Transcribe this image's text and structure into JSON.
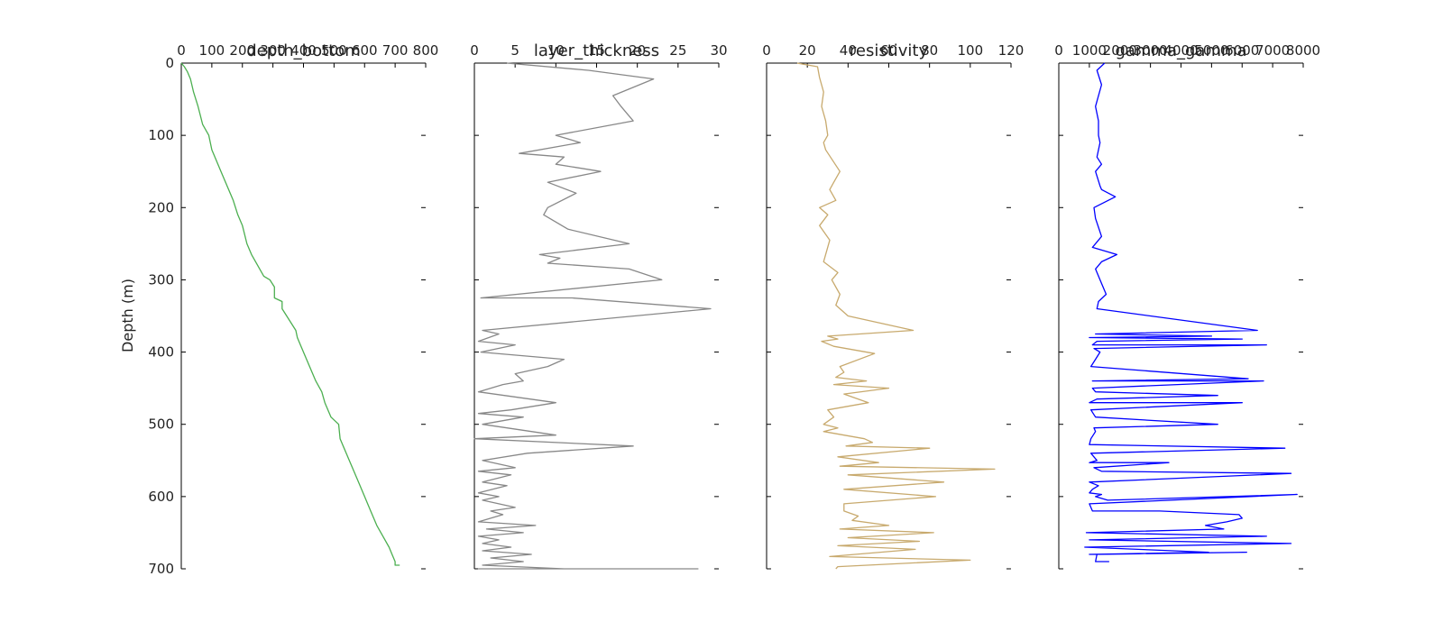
{
  "chart_data": [
    {
      "type": "line",
      "title": "depth_bottom",
      "xlim": [
        0,
        800
      ],
      "xticks": [
        "0",
        "100",
        "200",
        "300",
        "400",
        "500",
        "600",
        "700",
        "800"
      ],
      "ylim": [
        700,
        0
      ],
      "ylabel": "Depth (m)",
      "yticks": [
        "0",
        "100",
        "200",
        "300",
        "400",
        "500",
        "600",
        "700"
      ],
      "color": "#4caf50",
      "x": [
        0,
        10,
        20,
        30,
        40,
        55,
        70,
        90,
        100,
        110,
        130,
        150,
        170,
        185,
        200,
        215,
        230,
        250,
        270,
        290,
        305,
        305,
        330,
        330,
        375,
        380,
        390,
        410,
        430,
        440,
        460,
        470,
        480,
        490,
        515,
        520,
        540,
        560,
        580,
        600,
        620,
        640,
        660,
        680,
        690,
        700,
        700,
        715
      ],
      "y": [
        0,
        5,
        12,
        22,
        40,
        60,
        85,
        100,
        120,
        130,
        150,
        170,
        190,
        210,
        225,
        250,
        265,
        280,
        295,
        300,
        310,
        325,
        330,
        340,
        370,
        380,
        390,
        410,
        430,
        440,
        455,
        470,
        480,
        490,
        500,
        520,
        540,
        560,
        580,
        600,
        620,
        640,
        655,
        670,
        680,
        690,
        695,
        695
      ],
      "grid": false
    },
    {
      "type": "line",
      "title": "layer_thickness",
      "xlim": [
        0,
        30
      ],
      "xticks": [
        "0",
        "5",
        "10",
        "15",
        "20",
        "25",
        "30"
      ],
      "ylim": [
        700,
        0
      ],
      "yticks": [
        "0",
        "100",
        "200",
        "300",
        "400",
        "500",
        "600",
        "700"
      ],
      "color": "#888888",
      "x": [
        4,
        14,
        22,
        17,
        18,
        19.5,
        10,
        13,
        5.5,
        11,
        10,
        15.5,
        9,
        12.5,
        9,
        8.5,
        11.5,
        19,
        8,
        10.5,
        9,
        19,
        23,
        0.8,
        12,
        29,
        1,
        3,
        0.5,
        5,
        0.8,
        11,
        9,
        5,
        6,
        3.5,
        0.5,
        10,
        4.5,
        0.5,
        6,
        1,
        10,
        0,
        19.5,
        6.5,
        1,
        5,
        0.5,
        4.5,
        1,
        4,
        0.5,
        3,
        1,
        5,
        2,
        3.5,
        0.5,
        7.5,
        1.5,
        6,
        0.5,
        3,
        1,
        4.5,
        1,
        7,
        2,
        6,
        1,
        11,
        0.5,
        27.5
      ],
      "y": [
        0,
        10,
        22,
        45,
        60,
        80,
        100,
        110,
        125,
        130,
        140,
        150,
        165,
        180,
        200,
        210,
        230,
        250,
        265,
        270,
        277,
        285,
        300,
        325,
        325,
        340,
        370,
        375,
        385,
        390,
        400,
        410,
        420,
        430,
        440,
        445,
        455,
        470,
        480,
        485,
        490,
        500,
        515,
        520,
        530,
        540,
        550,
        560,
        565,
        570,
        580,
        585,
        595,
        600,
        605,
        615,
        620,
        625,
        635,
        640,
        645,
        650,
        655,
        660,
        665,
        670,
        675,
        680,
        685,
        690,
        695,
        700,
        700,
        700
      ],
      "grid": false
    },
    {
      "type": "line",
      "title": "resistivity",
      "xlim": [
        0,
        120
      ],
      "xticks": [
        "0",
        "20",
        "40",
        "60",
        "80",
        "100",
        "120"
      ],
      "ylim": [
        700,
        0
      ],
      "yticks": [
        "0",
        "100",
        "200",
        "300",
        "400",
        "500",
        "600",
        "700"
      ],
      "color": "#c8aa6e",
      "x": [
        15,
        25,
        26,
        28,
        27,
        29,
        30,
        28,
        29,
        36,
        33,
        31,
        34,
        26,
        30,
        26,
        31,
        28,
        35,
        32,
        36,
        34,
        36,
        40,
        72,
        30,
        35,
        27,
        33,
        53,
        36,
        38,
        34,
        49,
        33,
        60,
        38,
        50,
        30,
        33,
        28,
        35,
        28,
        48,
        52,
        39,
        80,
        35,
        55,
        36,
        112,
        40,
        87,
        38,
        83,
        38,
        38,
        45,
        42,
        60,
        36,
        82,
        40,
        75,
        35,
        73,
        31,
        100,
        35,
        34
      ],
      "y": [
        0,
        5,
        20,
        40,
        60,
        80,
        100,
        110,
        120,
        150,
        165,
        175,
        190,
        200,
        210,
        225,
        245,
        275,
        290,
        300,
        320,
        335,
        340,
        350,
        370,
        378,
        382,
        385,
        392,
        402,
        420,
        428,
        435,
        440,
        445,
        450,
        458,
        470,
        480,
        490,
        500,
        505,
        510,
        520,
        525,
        530,
        533,
        545,
        553,
        558,
        562,
        570,
        580,
        590,
        600,
        610,
        620,
        627,
        633,
        640,
        645,
        650,
        657,
        662,
        668,
        673,
        683,
        688,
        697,
        700
      ],
      "grid": false
    },
    {
      "type": "line",
      "title": "gamma_gamma",
      "xlim": [
        0,
        8000
      ],
      "xticks": [
        "0",
        "1000",
        "2000",
        "3000",
        "4000",
        "5000",
        "6000",
        "7000",
        "8000"
      ],
      "ylim": [
        700,
        0
      ],
      "yticks": [
        "0",
        "100",
        "200",
        "300",
        "400",
        "500",
        "600",
        "700"
      ],
      "color": "#0000ff",
      "x": [
        1500,
        1250,
        1400,
        1200,
        1300,
        1300,
        1350,
        1250,
        1400,
        1200,
        1350,
        1400,
        1850,
        1150,
        1200,
        1400,
        1100,
        1900,
        1400,
        1200,
        1350,
        1550,
        1300,
        1250,
        6500,
        1200,
        5000,
        1000,
        6000,
        1250,
        1100,
        6800,
        1150,
        1350,
        1200,
        1050,
        6200,
        1100,
        6700,
        1100,
        1200,
        5200,
        1250,
        1000,
        6000,
        1050,
        1200,
        5200,
        1150,
        1200,
        1050,
        1000,
        7400,
        1050,
        1250,
        1000,
        3600,
        1150,
        1400,
        7600,
        1000,
        1300,
        1100,
        1000,
        1400,
        1200,
        1600,
        7800,
        1000,
        1100,
        3300,
        5900,
        6000,
        5500,
        4800,
        5400,
        900,
        6800,
        1000,
        7600,
        850,
        4900,
        1000,
        6150,
        1250,
        1200,
        1650
      ],
      "y": [
        0,
        10,
        30,
        60,
        80,
        100,
        110,
        130,
        140,
        150,
        170,
        175,
        185,
        200,
        215,
        240,
        255,
        265,
        275,
        285,
        300,
        320,
        330,
        340,
        370,
        375,
        378,
        380,
        382,
        385,
        390,
        390,
        395,
        400,
        410,
        420,
        437,
        440,
        440,
        450,
        455,
        460,
        465,
        470,
        470,
        480,
        490,
        500,
        505,
        510,
        520,
        528,
        533,
        540,
        550,
        553,
        553,
        560,
        565,
        568,
        580,
        585,
        590,
        595,
        597,
        600,
        605,
        597,
        610,
        620,
        620,
        625,
        630,
        635,
        640,
        645,
        650,
        655,
        660,
        665,
        670,
        677,
        680,
        677,
        680,
        690,
        690
      ],
      "grid": false
    }
  ]
}
